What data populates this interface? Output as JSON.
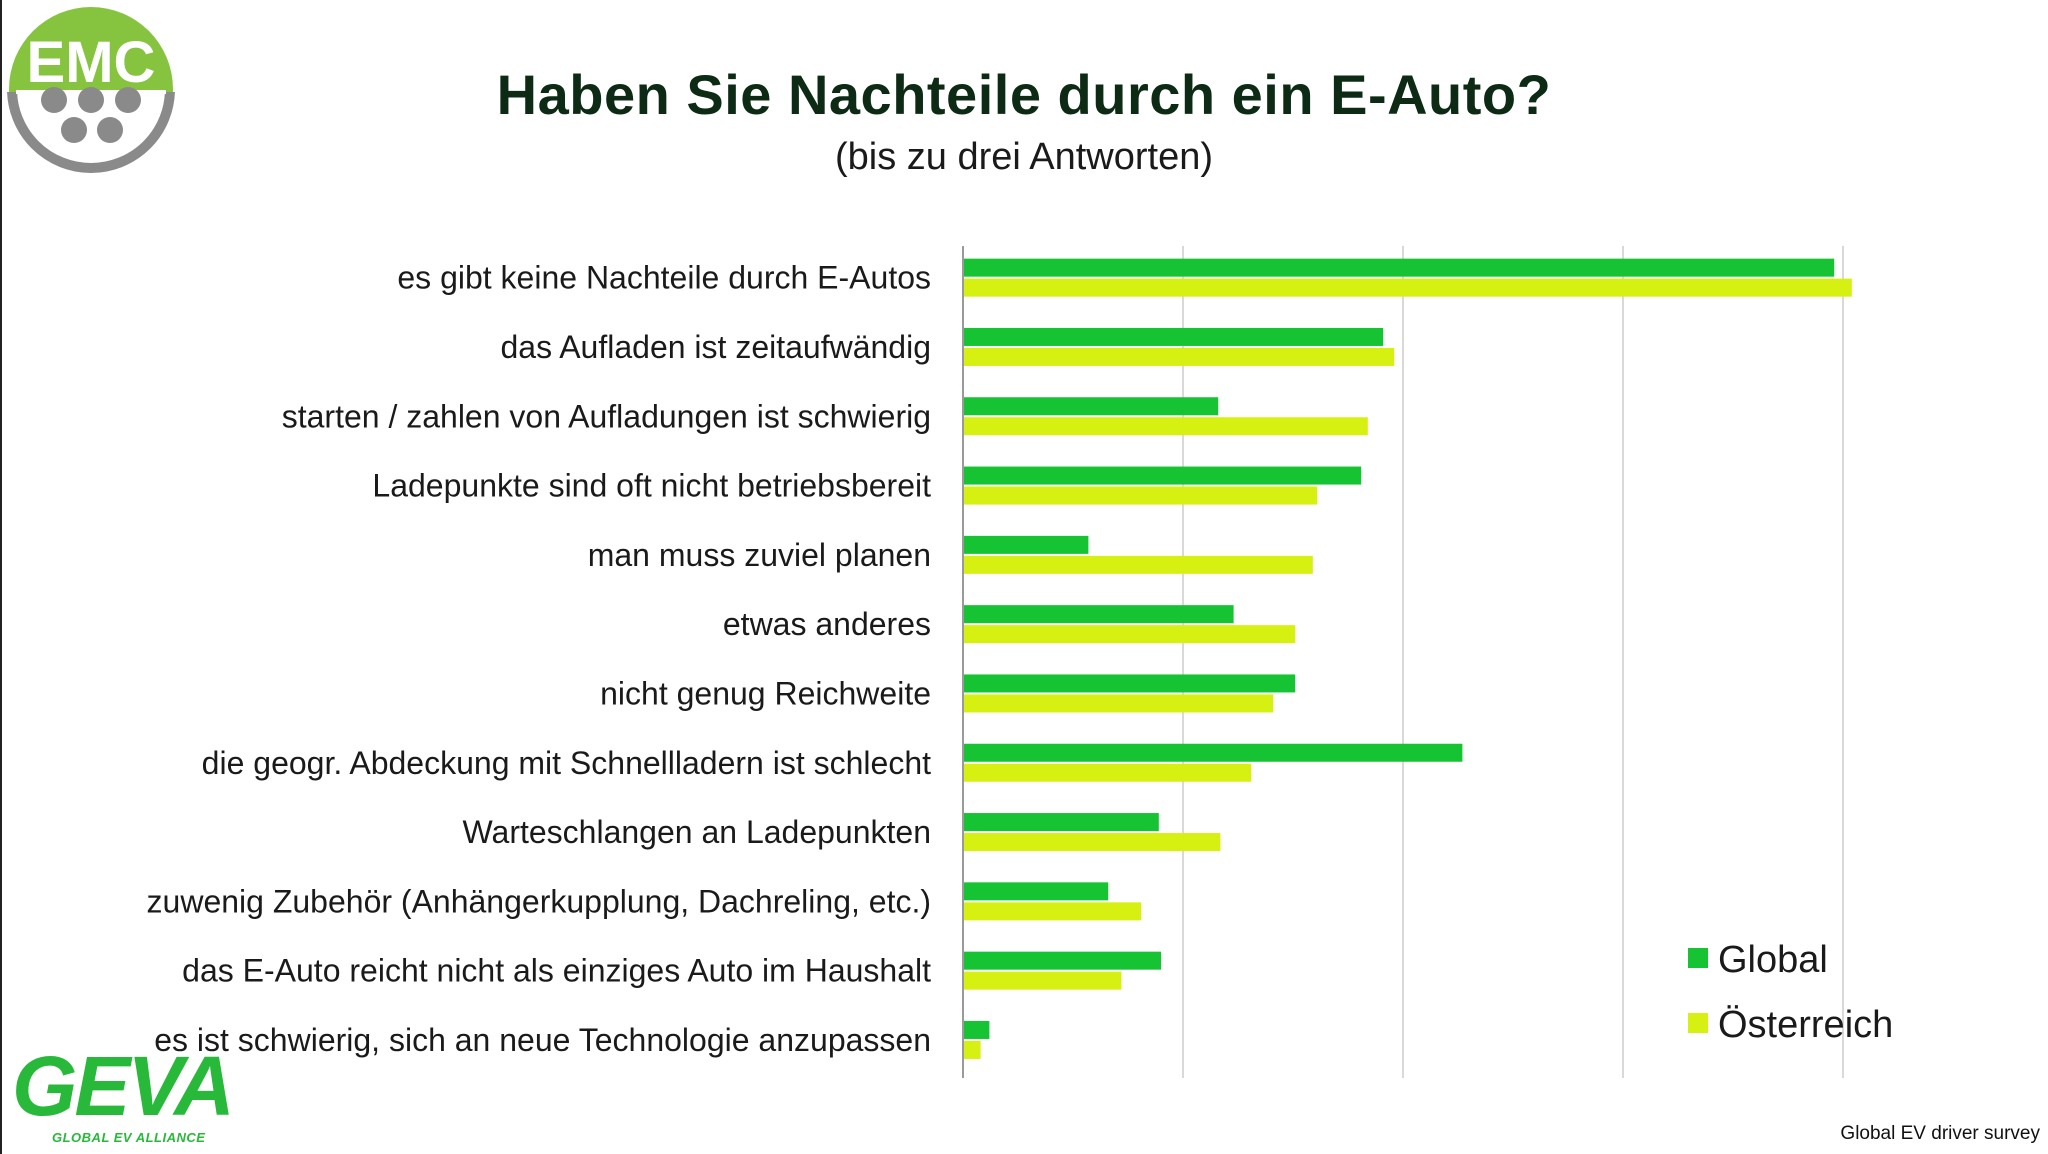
{
  "header": {
    "title": "Haben Sie Nachteile durch ein E-Auto?",
    "subtitle": "(bis zu drei Antworten)"
  },
  "logos": {
    "emc_text": "EMC",
    "geva_text": "GEVA",
    "geva_subtext": "GLOBAL EV ALLIANCE"
  },
  "footer": {
    "source": "Global EV driver survey"
  },
  "colors": {
    "global": "#16c332",
    "oesterreich": "#d6f012",
    "title": "#0c2a14",
    "emc_green": "#86c440",
    "emc_grey": "#8a8a8a"
  },
  "chart_data": {
    "type": "bar",
    "orientation": "horizontal",
    "title": "Haben Sie Nachteile durch ein E-Auto?",
    "subtitle": "(bis zu drei Antworten)",
    "categories": [
      "es gibt keine Nachteile durch E-Autos",
      "das Aufladen ist zeitaufwändig",
      "starten / zahlen von Aufladungen ist schwierig",
      "Ladepunkte sind oft nicht betriebsbereit",
      "man muss zuviel planen",
      "etwas anderes",
      "nicht genug Reichweite",
      "die geogr. Abdeckung  mit Schnellladern ist schlecht",
      "Warteschlangen an Ladepunkten",
      "zuwenig Zubehör (Anhängerkupplung, Dachreling, etc.)",
      "das E-Auto reicht nicht als einziges Auto im Haushalt",
      "es ist schwierig, sich an neue Technologie anzupassen"
    ],
    "series": [
      {
        "name": "Global",
        "color": "#16c332",
        "values": [
          39.6,
          19.1,
          11.6,
          18.1,
          5.7,
          12.3,
          15.1,
          22.7,
          8.9,
          6.6,
          9.0,
          1.2
        ]
      },
      {
        "name": "Österreich",
        "color": "#d6f012",
        "values": [
          40.4,
          19.6,
          18.4,
          16.1,
          15.9,
          15.1,
          14.1,
          13.1,
          11.7,
          8.1,
          7.2,
          0.8
        ]
      }
    ],
    "xlim": [
      0,
      40
    ],
    "x_gridlines": [
      0,
      10,
      20,
      30,
      40
    ],
    "tick_labels_shown": false,
    "grid": true,
    "legend": {
      "position": "bottom-right",
      "entries": [
        "Global",
        "Österreich"
      ]
    }
  }
}
